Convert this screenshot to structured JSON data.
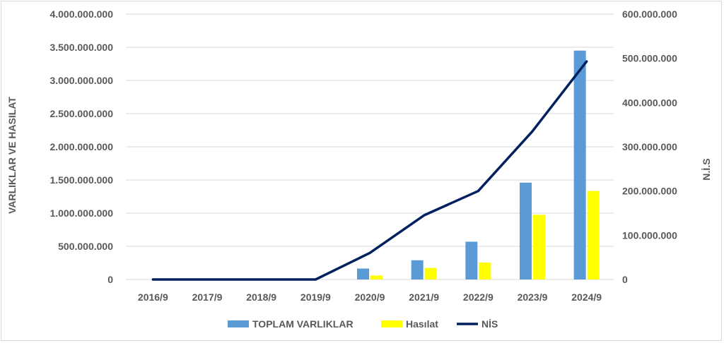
{
  "chart_data": {
    "type": "bar",
    "title": "",
    "categories": [
      "2016/9",
      "2017/9",
      "2018/9",
      "2019/9",
      "2020/9",
      "2021/9",
      "2022/9",
      "2023/9",
      "2024/9"
    ],
    "series": [
      {
        "name": "TOPLAM VARLIKLAR",
        "type": "bar",
        "axis": "left",
        "color": "#5b9bd5",
        "values": [
          0,
          0,
          0,
          0,
          165000000,
          290000000,
          570000000,
          1460000000,
          3450000000
        ]
      },
      {
        "name": "Hasılat",
        "type": "bar",
        "axis": "left",
        "color": "#ffff00",
        "values": [
          0,
          0,
          0,
          0,
          60000000,
          175000000,
          255000000,
          975000000,
          1335000000
        ]
      },
      {
        "name": "NİS",
        "type": "line",
        "axis": "right",
        "color": "#002060",
        "values": [
          0,
          0,
          0,
          0,
          60000000,
          145000000,
          200000000,
          335000000,
          493000000
        ]
      }
    ],
    "ylabel_left": "VARLIKLAR VE HASILAT",
    "ylabel_right": "N.İ.S",
    "ylim_left": [
      0,
      4000000000
    ],
    "ylim_right": [
      0,
      600000000
    ],
    "yticks_left": [
      "0",
      "500.000.000",
      "1.000.000.000",
      "1.500.000.000",
      "2.000.000.000",
      "2.500.000.000",
      "3.000.000.000",
      "3.500.000.000",
      "4.000.000.000"
    ],
    "yticks_right": [
      "0",
      "100.000.000",
      "200.000.000",
      "300.000.000",
      "400.000.000",
      "500.000.000",
      "600.000.000"
    ],
    "grid": true,
    "legend_position": "bottom"
  }
}
